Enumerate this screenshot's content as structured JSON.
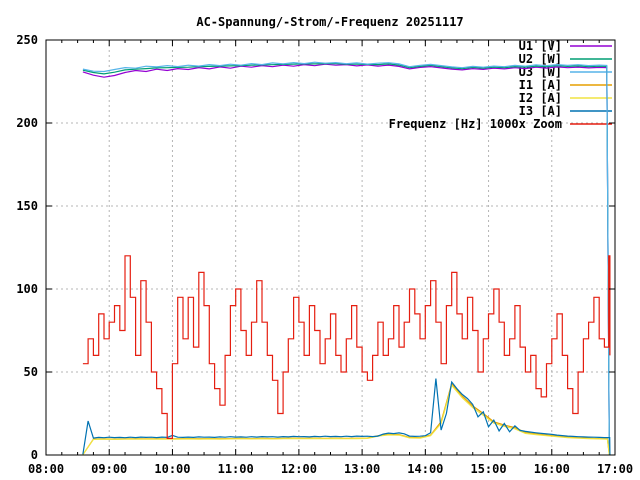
{
  "title": "AC-Spannung/-Strom/-Frequenz 20251117",
  "colors": {
    "background": "#ffffff",
    "border": "#000000",
    "grid": "#b4b4b4",
    "text": "#000000",
    "u1": "#9400d3",
    "u2": "#009e73",
    "u3": "#56b4e9",
    "i1": "#e69f00",
    "i2": "#f0e442",
    "i3": "#0072b2",
    "frequenz": "#e51e10"
  },
  "chart_data": {
    "type": "line",
    "title": "AC-Spannung/-Strom/-Frequenz 20251117",
    "xlabel": "",
    "ylabel": "",
    "grid": true,
    "legend_position": "top-right-inside",
    "x_range_hours": [
      8,
      17
    ],
    "x_tick_labels": [
      "08:00",
      "09:00",
      "10:00",
      "11:00",
      "12:00",
      "13:00",
      "14:00",
      "15:00",
      "16:00",
      "17:00"
    ],
    "x_minor_tick_hours": 0.25,
    "ylim": [
      0,
      250
    ],
    "y_ticks": [
      0,
      50,
      100,
      150,
      200,
      250
    ],
    "y_grid_values": [
      50,
      100,
      150,
      200
    ],
    "series": [
      {
        "name": "U1 [V]",
        "color": "#9400d3",
        "step": false,
        "t0": 8.5833,
        "dt": 0.16667,
        "values": [
          230.8,
          228.8,
          227.6,
          228.6,
          230.4,
          231.6,
          231.0,
          232.4,
          231.6,
          232.8,
          232.2,
          233.4,
          232.6,
          233.8,
          233.0,
          234.2,
          233.6,
          234.6,
          233.9,
          234.9,
          234.2,
          235.2,
          234.5,
          235.4,
          234.8,
          235.1,
          234.4,
          235.0,
          234.3,
          234.9,
          234.1,
          232.6,
          233.5,
          234.0,
          233.2,
          232.5,
          232.0,
          232.8,
          232.3,
          233.0,
          232.6,
          233.3,
          232.8,
          233.6,
          233.1,
          233.8,
          233.3,
          233.7,
          233.2,
          233.5
        ],
        "tail": [
          [
            16.87,
            233.4
          ],
          [
            16.91,
            2.0
          ]
        ]
      },
      {
        "name": "U2 [W]",
        "color": "#009e73",
        "step": false,
        "t0": 8.5833,
        "dt": 0.16667,
        "values": [
          231.8,
          230.4,
          229.6,
          230.6,
          232.0,
          232.4,
          232.8,
          233.2,
          233.3,
          233.5,
          233.6,
          234.0,
          234.1,
          234.3,
          234.4,
          234.6,
          234.8,
          235.0,
          235.1,
          235.3,
          235.4,
          235.6,
          235.6,
          235.8,
          235.7,
          235.5,
          235.4,
          235.3,
          235.2,
          235.6,
          234.9,
          233.3,
          234.1,
          234.7,
          234.0,
          233.2,
          232.7,
          233.5,
          233.0,
          233.7,
          233.3,
          234.0,
          233.6,
          234.3,
          233.9,
          234.5,
          234.1,
          234.4,
          234.0,
          234.2
        ],
        "tail": [
          [
            16.87,
            234.1
          ],
          [
            16.91,
            2.5
          ]
        ]
      },
      {
        "name": "U3 [W]",
        "color": "#56b4e9",
        "step": false,
        "t0": 8.5833,
        "dt": 0.16667,
        "values": [
          232.5,
          231.2,
          231.0,
          232.2,
          233.4,
          233.0,
          234.2,
          233.8,
          234.6,
          234.0,
          234.8,
          234.3,
          235.2,
          234.6,
          235.4,
          234.8,
          235.8,
          235.2,
          236.2,
          235.6,
          236.4,
          235.8,
          236.6,
          236.0,
          236.4,
          235.7,
          236.2,
          235.5,
          236.0,
          236.3,
          235.6,
          233.9,
          234.7,
          235.3,
          234.6,
          233.8,
          233.3,
          234.1,
          233.6,
          234.3,
          233.9,
          234.7,
          234.2,
          235.0,
          234.5,
          235.2,
          234.7,
          235.1,
          234.6,
          234.9
        ],
        "tail": [
          [
            16.87,
            234.7
          ],
          [
            16.91,
            3.0
          ]
        ]
      },
      {
        "name": "I1 [A]",
        "color": "#e69f00",
        "step": false,
        "t0": 8.5833,
        "dt": 0.16667,
        "values": [
          0.2,
          9.6,
          9.7,
          9.6,
          9.7,
          9.8,
          9.7,
          9.8,
          9.7,
          9.8,
          9.9,
          9.8,
          9.9,
          9.8,
          9.9,
          10.0,
          9.9,
          10.0,
          9.9,
          10.0,
          10.1,
          10.0,
          10.1,
          10.0,
          10.1,
          10.0,
          10.1,
          10.2,
          11.6,
          12.4,
          12.3,
          10.6,
          10.4,
          12.0,
          20.0,
          43.0,
          35.5,
          29.5,
          25.0,
          20.0,
          18.0,
          16.5,
          13.5,
          12.7,
          12.0,
          11.4,
          10.8,
          10.4,
          10.1,
          9.9
        ],
        "tail": [
          [
            16.88,
            9.8
          ],
          [
            16.91,
            0.2
          ]
        ]
      },
      {
        "name": "I2 [A]",
        "color": "#f0e442",
        "step": false,
        "t0": 8.5833,
        "dt": 0.16667,
        "values": [
          0.2,
          9.4,
          9.5,
          9.4,
          9.5,
          9.6,
          9.5,
          9.6,
          9.5,
          9.6,
          9.7,
          9.6,
          9.7,
          9.6,
          9.7,
          9.8,
          9.7,
          9.8,
          9.7,
          9.8,
          9.9,
          9.8,
          9.9,
          9.8,
          9.9,
          9.8,
          9.9,
          10.0,
          11.3,
          12.1,
          12.0,
          10.3,
          10.2,
          11.6,
          19.0,
          42.0,
          34.5,
          28.5,
          24.0,
          19.2,
          17.2,
          15.8,
          13.0,
          12.3,
          11.6,
          11.0,
          10.5,
          10.1,
          9.9,
          9.7
        ],
        "tail": [
          [
            16.88,
            9.6
          ],
          [
            16.91,
            0.2
          ]
        ]
      },
      {
        "name": "I3 [A]",
        "color": "#0072b2",
        "step": false,
        "t0": 8.5833,
        "dt": 0.08333,
        "values": [
          0.5,
          20.5,
          10.2,
          10.6,
          10.4,
          10.7,
          10.5,
          10.6,
          10.4,
          10.7,
          10.5,
          10.8,
          10.6,
          10.7,
          10.5,
          10.8,
          10.6,
          11.8,
          10.7,
          10.6,
          10.8,
          10.6,
          10.9,
          10.7,
          10.8,
          10.6,
          10.9,
          10.7,
          11.0,
          10.8,
          10.9,
          10.7,
          11.0,
          10.8,
          11.1,
          10.9,
          11.0,
          10.8,
          11.1,
          10.9,
          11.2,
          11.0,
          11.1,
          10.9,
          11.2,
          11.0,
          11.3,
          11.1,
          11.2,
          11.0,
          11.3,
          11.1,
          11.4,
          11.2,
          11.3,
          11.1,
          11.4,
          12.6,
          13.2,
          12.9,
          13.3,
          12.8,
          11.4,
          11.2,
          11.3,
          11.6,
          13.4,
          46.0,
          15.0,
          25.0,
          44.0,
          40.0,
          36.5,
          34.0,
          30.5,
          23.0,
          26.0,
          17.0,
          21.0,
          14.5,
          19.0,
          14.0,
          17.5,
          14.8,
          14.2,
          13.8,
          13.4,
          13.0,
          12.7,
          12.4,
          12.0,
          11.7,
          11.4,
          11.2,
          11.0,
          10.9,
          10.8,
          10.7,
          10.6,
          10.5,
          10.5
        ],
        "tail": [
          [
            16.92,
            0.3
          ]
        ]
      },
      {
        "name": "Frequenz [Hz] 1000x Zoom",
        "color": "#e51e10",
        "step": true,
        "t0": 8.5833,
        "dt": 0.08333,
        "values": [
          55,
          70,
          60,
          85,
          70,
          80,
          90,
          75,
          120,
          95,
          60,
          105,
          80,
          50,
          40,
          25,
          10,
          55,
          95,
          70,
          95,
          65,
          110,
          90,
          55,
          40,
          30,
          60,
          90,
          100,
          75,
          60,
          80,
          105,
          80,
          60,
          45,
          25,
          50,
          70,
          95,
          80,
          60,
          90,
          75,
          55,
          70,
          85,
          60,
          50,
          70,
          90,
          65,
          50,
          45,
          60,
          80,
          60,
          70,
          90,
          65,
          80,
          100,
          85,
          70,
          90,
          105,
          80,
          55,
          90,
          110,
          85,
          70,
          95,
          75,
          50,
          70,
          85,
          100,
          80,
          60,
          70,
          90,
          65,
          50,
          60,
          40,
          35,
          55,
          70,
          85,
          60,
          40,
          25,
          50,
          70,
          80,
          95,
          70,
          65
        ],
        "tail": [
          [
            16.9,
            120
          ],
          [
            16.92,
            60
          ]
        ]
      }
    ]
  }
}
